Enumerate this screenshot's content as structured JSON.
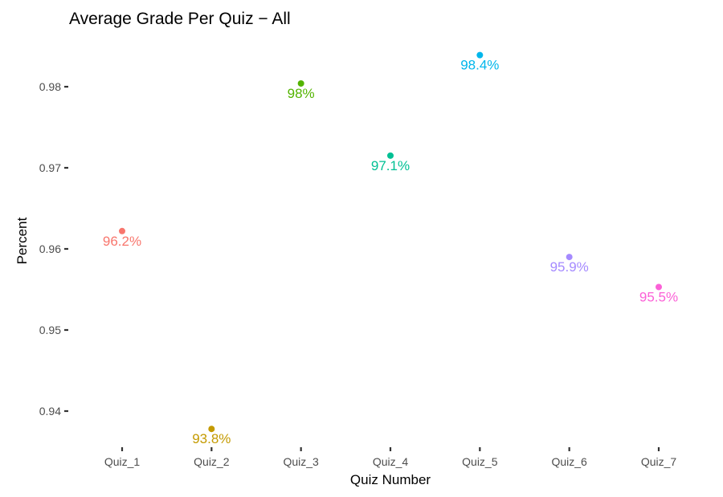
{
  "chart_data": {
    "type": "scatter",
    "title": "Average Grade Per Quiz − All",
    "xlabel": "Quiz Number",
    "ylabel": "Percent",
    "categories": [
      "Quiz_1",
      "Quiz_2",
      "Quiz_3",
      "Quiz_4",
      "Quiz_5",
      "Quiz_6",
      "Quiz_7"
    ],
    "values": [
      0.9622,
      0.9378,
      0.9804,
      0.9715,
      0.9839,
      0.959,
      0.9553
    ],
    "labels": [
      "96.2%",
      "93.8%",
      "98%",
      "97.1%",
      "98.4%",
      "95.9%",
      "95.5%"
    ],
    "colors": [
      "#F8766D",
      "#C49A00",
      "#53B400",
      "#00C094",
      "#00B6EB",
      "#A58AFF",
      "#FB61D7"
    ],
    "yticks": [
      0.94,
      0.95,
      0.96,
      0.97,
      0.98
    ],
    "ytick_labels": [
      "0.94",
      "0.95",
      "0.96",
      "0.97",
      "0.98"
    ],
    "ylim": [
      0.9355,
      0.9855
    ],
    "grid": false,
    "legend": "none"
  }
}
